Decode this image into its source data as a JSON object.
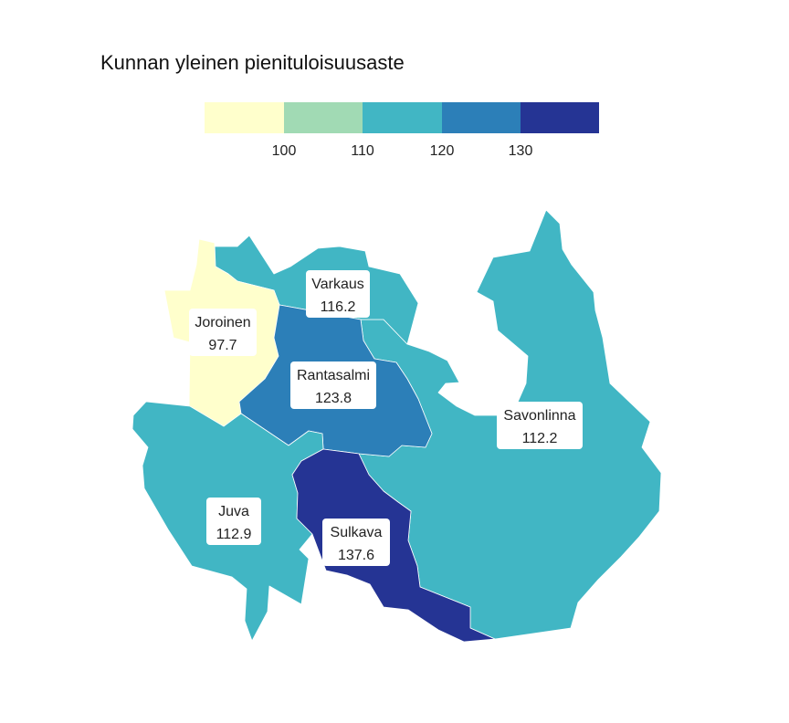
{
  "title": "Kunnan yleinen pienituloisuusaste",
  "legend": {
    "breaks": [
      100,
      110,
      120,
      130
    ],
    "colors": [
      "#ffffcc",
      "#a1dab4",
      "#41b6c4",
      "#2c7fb8",
      "#253494"
    ],
    "ticks": [
      "100",
      "110",
      "120",
      "130"
    ]
  },
  "regions": [
    {
      "name": "Joroinen",
      "value": "97.7",
      "color": "#ffffcc"
    },
    {
      "name": "Varkaus",
      "value": "116.2",
      "color": "#41b6c4"
    },
    {
      "name": "Rantasalmi",
      "value": "123.8",
      "color": "#2c7fb8"
    },
    {
      "name": "Savonlinna",
      "value": "112.2",
      "color": "#41b6c4"
    },
    {
      "name": "Juva",
      "value": "112.9",
      "color": "#41b6c4"
    },
    {
      "name": "Sulkava",
      "value": "137.6",
      "color": "#253494"
    }
  ]
}
